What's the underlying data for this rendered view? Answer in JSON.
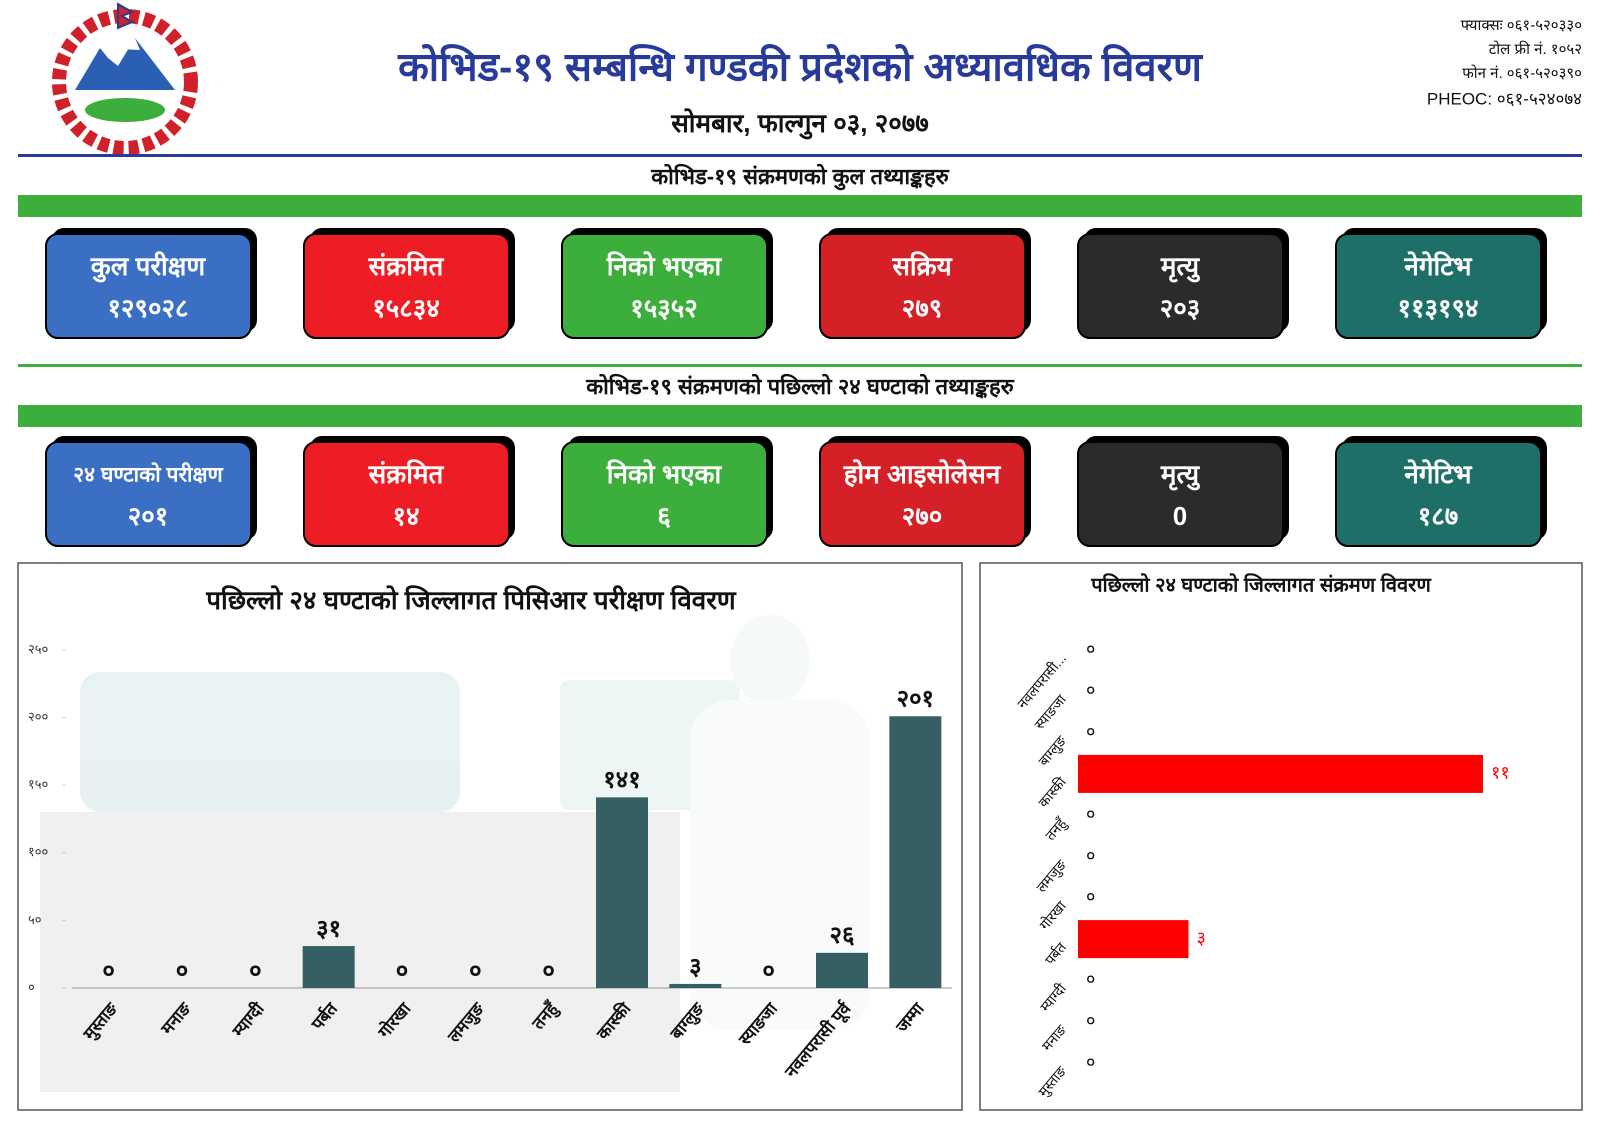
{
  "header": {
    "title": "कोभिड-१९ सम्बन्धि गण्डकी प्रदेशको अध्यावधिक विवरण",
    "date": "सोमबार, फाल्गुन ०३, २०७७",
    "contacts": [
      "फ्याक्सः ०६१-५२०३३०",
      "टोल फ्री नं. १०५२",
      "फोन नं. ०६१-५२०३९०",
      "PHEOC: ०६१-५२४०७४"
    ]
  },
  "sections": [
    {
      "title": "कोभिड-१९ संक्रमणको कुल तथ्याङ्कहरु",
      "cards": [
        {
          "label": "कुल परीक्षण",
          "value": "१२९०२८",
          "color": "#3b6fc4"
        },
        {
          "label": "संक्रमित",
          "value": "१५८३४",
          "color": "#ee1c25"
        },
        {
          "label": "निको भएका",
          "value": "१५३५२",
          "color": "#3cae3c"
        },
        {
          "label": "सक्रिय",
          "value": "२७९",
          "color": "#d52027"
        },
        {
          "label": "मृत्यु",
          "value": "२०३",
          "color": "#2b2b2b"
        },
        {
          "label": "नेगेटिभ",
          "value": "११३१९४",
          "color": "#1f6f69"
        }
      ]
    },
    {
      "title": "कोभिड-१९ संक्रमणको पछिल्लो २४ घण्टाको तथ्याङ्कहरु",
      "cards": [
        {
          "label": "२४ घण्टाको परीक्षण",
          "value": "२०१",
          "color": "#3b6fc4"
        },
        {
          "label": "संक्रमित",
          "value": "१४",
          "color": "#ee1c25"
        },
        {
          "label": "निको भएका",
          "value": "६",
          "color": "#3cae3c"
        },
        {
          "label": "होम आइसोलेसन",
          "value": "२७०",
          "color": "#d52027"
        },
        {
          "label": "मृत्यु",
          "value": "0",
          "color": "#2b2b2b"
        },
        {
          "label": "नेगेटिभ",
          "value": "१८७",
          "color": "#1f6f69"
        }
      ]
    }
  ],
  "chart_data": [
    {
      "type": "bar",
      "title": "पछिल्लो २४ घण्टाको जिल्लागत पिसिआर परीक्षण विवरण",
      "categories": [
        "मुस्ताङ",
        "मनाङ",
        "म्याग्दी",
        "पर्बत",
        "गोरखा",
        "लमजुङ",
        "तनहुँ",
        "कास्की",
        "बाग्लुङ",
        "स्याङजा",
        "नवलपरासी पूर्व",
        "जम्मा"
      ],
      "values": [
        0,
        0,
        0,
        31,
        0,
        0,
        0,
        141,
        3,
        0,
        26,
        201
      ],
      "value_labels": [
        "०",
        "०",
        "०",
        "३१",
        "०",
        "०",
        "०",
        "१४१",
        "३",
        "०",
        "२६",
        "२०१"
      ],
      "color": "#365f63",
      "ylim": [
        0,
        250
      ],
      "yticks": [
        {
          "value": 0,
          "label": "०"
        },
        {
          "value": 50,
          "label": "५०"
        },
        {
          "value": 100,
          "label": "१००"
        },
        {
          "value": 150,
          "label": "१५०"
        },
        {
          "value": 200,
          "label": "२००"
        },
        {
          "value": 250,
          "label": "२५०"
        }
      ]
    },
    {
      "type": "hbar",
      "title": "पछिल्लो २४ घण्टाको जिल्लागत संक्रमण विवरण",
      "categories": [
        "नवलपरासी...",
        "स्याङजा",
        "बाग्लुङ",
        "कास्की",
        "तनहुँ",
        "लमजुङ",
        "गोरखा",
        "पर्बत",
        "म्याग्दी",
        "मनाङ",
        "मुस्ताङ"
      ],
      "values": [
        0,
        0,
        0,
        11,
        0,
        0,
        0,
        3,
        0,
        0,
        0
      ],
      "value_labels": [
        "०",
        "०",
        "०",
        "११",
        "०",
        "०",
        "०",
        "३",
        "०",
        "०",
        "०"
      ],
      "color": "#ff0000"
    }
  ]
}
